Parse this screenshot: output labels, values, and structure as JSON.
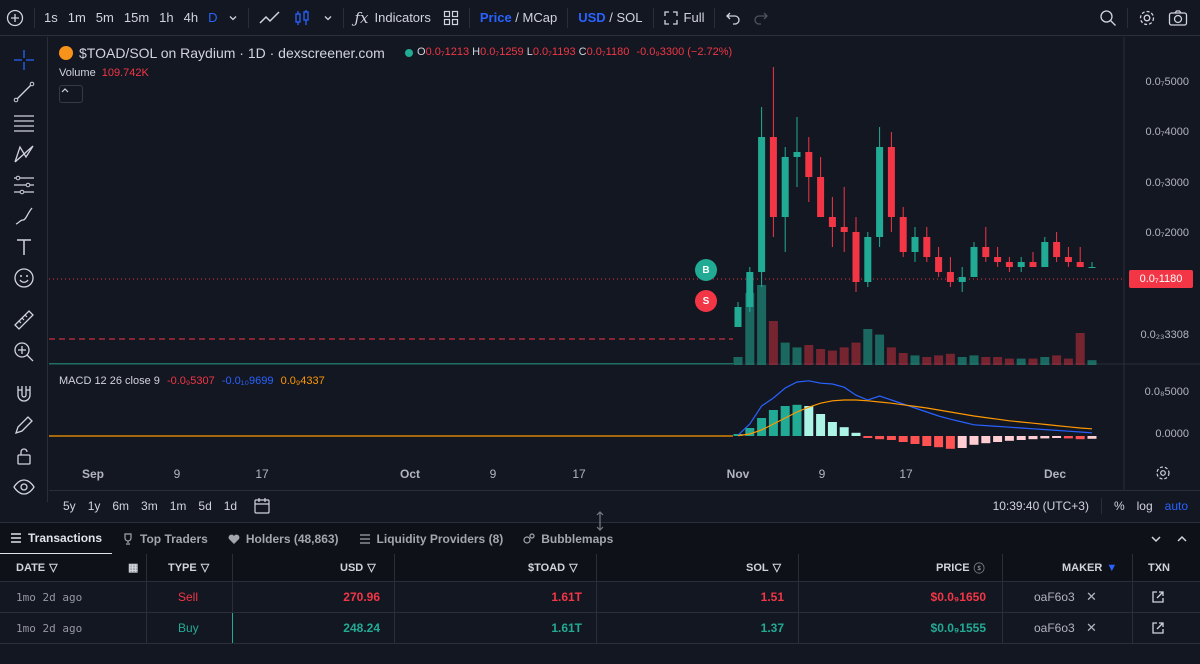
{
  "toolbar": {
    "intervals": [
      "1s",
      "1m",
      "5m",
      "15m",
      "1h",
      "4h",
      "D"
    ],
    "active_interval": "D",
    "indicators_label": "Indicators",
    "price_label": "Price",
    "mcap_label": "MCap",
    "usd_label": "USD",
    "sol_label": "SOL",
    "full_label": "Full"
  },
  "legend": {
    "title": "$TOAD/SOL on Raydium · 1D · dexscreener.com",
    "ohlc": {
      "o_key": "O",
      "o": "0.0₇1213",
      "h_key": "H",
      "h": "0.0₇1259",
      "l_key": "L",
      "l": "0.0₇1193",
      "c_key": "C",
      "c": "0.0₇1180",
      "change": "-0.0₉3300 (−2.72%)"
    },
    "volume_label": "Volume",
    "volume_value": "109.742K"
  },
  "macd": {
    "label": "MACD 12 26 close 9",
    "v1": "-0.0₉5307",
    "v2": "-0.0₁₀9699",
    "v3": "0.0₉4337"
  },
  "price_axis": [
    "0.0₇5000",
    "0.0₇4000",
    "0.0₇3000",
    "0.0₇2000",
    "0.0₇1000",
    "0.0₂₃3308"
  ],
  "macd_axis": [
    "0.0₈5000",
    "0.0000"
  ],
  "current_price": "0.0₇1180",
  "time_axis": [
    "Sep",
    "9",
    "17",
    "Oct",
    "9",
    "17",
    "Nov",
    "9",
    "17",
    "Dec"
  ],
  "markers": {
    "buy": "B",
    "sell": "S"
  },
  "chart_controls": {
    "ranges": [
      "5y",
      "1y",
      "6m",
      "3m",
      "1m",
      "5d",
      "1d"
    ],
    "clock": "10:39:40 (UTC+3)",
    "percent": "%",
    "log": "log",
    "auto": "auto"
  },
  "tabs": [
    {
      "label": "Transactions"
    },
    {
      "label": "Top Traders"
    },
    {
      "label": "Holders (48,863)"
    },
    {
      "label": "Liquidity Providers (8)"
    },
    {
      "label": "Bubblemaps"
    }
  ],
  "table": {
    "headers": {
      "date": "DATE",
      "type": "TYPE",
      "usd": "USD",
      "token": "$TOAD",
      "sol": "SOL",
      "price": "PRICE",
      "maker": "MAKER",
      "txn": "TXN"
    },
    "rows": [
      {
        "date": "1mo 2d ago",
        "type": "Sell",
        "usd": "270.96",
        "token": "1.61T",
        "sol": "1.51",
        "price": "$0.0₉1650",
        "maker": "oaF6o3"
      },
      {
        "date": "1mo 2d ago",
        "type": "Buy",
        "usd": "248.24",
        "token": "1.61T",
        "sol": "1.37",
        "price": "$0.0₉1555",
        "maker": "oaF6o3"
      }
    ]
  },
  "colors": {
    "up": "#22ab94",
    "down": "#f23645",
    "accent": "#2962ff",
    "macd": "#2962ff",
    "signal": "#ff9800"
  },
  "chart_data": {
    "type": "candlestick",
    "series_note": "approximate daily OHLC read from chart, in units of 1e-8",
    "candles": [
      [
        0.0,
        0.5,
        0.0,
        0.4
      ],
      [
        0.4,
        1.2,
        0.3,
        1.1
      ],
      [
        1.1,
        4.4,
        0.8,
        3.8
      ],
      [
        3.8,
        5.2,
        1.8,
        2.2
      ],
      [
        2.2,
        3.6,
        1.5,
        3.4
      ],
      [
        3.4,
        4.2,
        2.8,
        3.5
      ],
      [
        3.5,
        3.8,
        2.5,
        3.0
      ],
      [
        3.0,
        3.4,
        2.2,
        2.2
      ],
      [
        2.2,
        2.6,
        1.6,
        2.0
      ],
      [
        2.0,
        2.8,
        1.5,
        1.9
      ],
      [
        1.9,
        2.2,
        0.7,
        0.9
      ],
      [
        0.9,
        1.9,
        0.8,
        1.8
      ],
      [
        1.8,
        4.0,
        1.6,
        3.6
      ],
      [
        3.6,
        3.9,
        1.9,
        2.2
      ],
      [
        2.2,
        2.4,
        1.4,
        1.5
      ],
      [
        1.5,
        2.0,
        1.3,
        1.8
      ],
      [
        1.8,
        2.0,
        1.3,
        1.4
      ],
      [
        1.4,
        1.6,
        1.0,
        1.1
      ],
      [
        1.1,
        1.4,
        0.8,
        0.9
      ],
      [
        0.9,
        1.2,
        0.7,
        1.0
      ],
      [
        1.0,
        1.7,
        1.0,
        1.6
      ],
      [
        1.6,
        2.0,
        1.3,
        1.4
      ],
      [
        1.4,
        1.6,
        1.2,
        1.3
      ],
      [
        1.3,
        1.4,
        1.1,
        1.2
      ],
      [
        1.2,
        1.4,
        1.1,
        1.3
      ],
      [
        1.3,
        1.5,
        1.2,
        1.2
      ],
      [
        1.2,
        1.8,
        1.2,
        1.7
      ],
      [
        1.7,
        1.9,
        1.3,
        1.4
      ],
      [
        1.4,
        1.6,
        1.2,
        1.3
      ],
      [
        1.3,
        1.6,
        1.2,
        1.2
      ],
      [
        1.2,
        1.3,
        1.2,
        1.2
      ]
    ],
    "volumes": [
      0.1,
      0.9,
      1.0,
      0.55,
      0.28,
      0.22,
      0.25,
      0.2,
      0.18,
      0.22,
      0.28,
      0.45,
      0.38,
      0.22,
      0.15,
      0.12,
      0.1,
      0.12,
      0.14,
      0.1,
      0.12,
      0.1,
      0.1,
      0.08,
      0.08,
      0.08,
      0.1,
      0.12,
      0.08,
      0.4,
      0.06
    ],
    "macd_hist": [
      0.05,
      0.2,
      0.45,
      0.65,
      0.75,
      0.78,
      0.75,
      0.55,
      0.35,
      0.22,
      0.08,
      -0.05,
      -0.08,
      -0.1,
      -0.15,
      -0.2,
      -0.25,
      -0.28,
      -0.32,
      -0.3,
      -0.22,
      -0.18,
      -0.15,
      -0.12,
      -0.1,
      -0.08,
      -0.06,
      -0.05,
      -0.06,
      -0.08,
      -0.07
    ],
    "macd_line": [
      0.02,
      0.3,
      0.75,
      0.95,
      1.2,
      1.35,
      1.38,
      1.32,
      1.3,
      1.22,
      1.02,
      0.9,
      1.0,
      0.9,
      0.8,
      0.7,
      0.6,
      0.5,
      0.42,
      0.35,
      0.28,
      0.26,
      0.24,
      0.22,
      0.2,
      0.18,
      0.16,
      0.14,
      0.12,
      0.1,
      0.08
    ],
    "signal_line": [
      0.01,
      0.05,
      0.15,
      0.3,
      0.45,
      0.6,
      0.72,
      0.82,
      0.88,
      0.9,
      0.9,
      0.88,
      0.85,
      0.82,
      0.78,
      0.74,
      0.7,
      0.65,
      0.6,
      0.55,
      0.5,
      0.46,
      0.42,
      0.38,
      0.35,
      0.32,
      0.29,
      0.26,
      0.23,
      0.2,
      0.18
    ]
  }
}
